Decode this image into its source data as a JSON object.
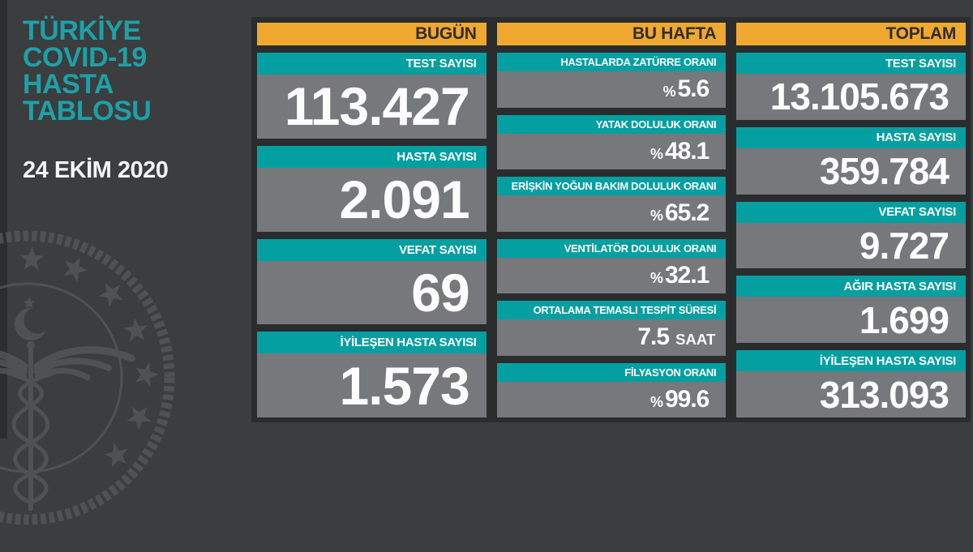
{
  "sidebar": {
    "title_lines": [
      "TÜRKİYE",
      "COVID-19",
      "HASTA",
      "TABLOSU"
    ],
    "date": "24 EKİM 2020"
  },
  "icons": {
    "watermark": "health-ministry-emblem"
  },
  "colors": {
    "background": "#3B3D3E",
    "panel_dark": "#2A2C2D",
    "card_gray": "#77787B",
    "accent_teal": "#049FA1",
    "accent_yellow": "#EFA830",
    "title_teal": "#1EA0A8",
    "value_white": "#FCFCFC",
    "emblem_gray": "#545658"
  },
  "chart_data": {
    "type": "table",
    "title": "TÜRKİYE COVID-19 HASTA TABLOSU",
    "groups": [
      {
        "header": "BUGÜN",
        "cards": [
          {
            "label": "TEST SAYISI",
            "prefix": "",
            "value": "113.427",
            "suffix": ""
          },
          {
            "label": "HASTA SAYISI",
            "prefix": "",
            "value": "2.091",
            "suffix": ""
          },
          {
            "label": "VEFAT SAYISI",
            "prefix": "",
            "value": "69",
            "suffix": ""
          },
          {
            "label": "İYİLEŞEN HASTA SAYISI",
            "prefix": "",
            "value": "1.573",
            "suffix": ""
          }
        ]
      },
      {
        "header": "BU HAFTA",
        "cards": [
          {
            "label": "HASTALARDA ZATÜRRE ORANI",
            "prefix": "%",
            "value": "5.6",
            "suffix": ""
          },
          {
            "label": "YATAK DOLULUK ORANI",
            "prefix": "%",
            "value": "48.1",
            "suffix": ""
          },
          {
            "label": "ERİŞKİN YOĞUN BAKIM DOLULUK ORANI",
            "prefix": "%",
            "value": "65.2",
            "suffix": ""
          },
          {
            "label": "VENTİLATÖR DOLULUK ORANI",
            "prefix": "%",
            "value": "32.1",
            "suffix": ""
          },
          {
            "label": "ORTALAMA TEMASLI TESPİT SÜRESİ",
            "prefix": "",
            "value": "7.5",
            "suffix": "SAAT"
          },
          {
            "label": "FİLYASYON ORANI",
            "prefix": "%",
            "value": "99.6",
            "suffix": ""
          }
        ]
      },
      {
        "header": "TOPLAM",
        "cards": [
          {
            "label": "TEST SAYISI",
            "prefix": "",
            "value": "13.105.673",
            "suffix": ""
          },
          {
            "label": "HASTA SAYISI",
            "prefix": "",
            "value": "359.784",
            "suffix": ""
          },
          {
            "label": "VEFAT SAYISI",
            "prefix": "",
            "value": "9.727",
            "suffix": ""
          },
          {
            "label": "AĞIR HASTA SAYISI",
            "prefix": "",
            "value": "1.699",
            "suffix": ""
          },
          {
            "label": "İYİLEŞEN HASTA SAYISI",
            "prefix": "",
            "value": "313.093",
            "suffix": ""
          }
        ]
      }
    ]
  }
}
